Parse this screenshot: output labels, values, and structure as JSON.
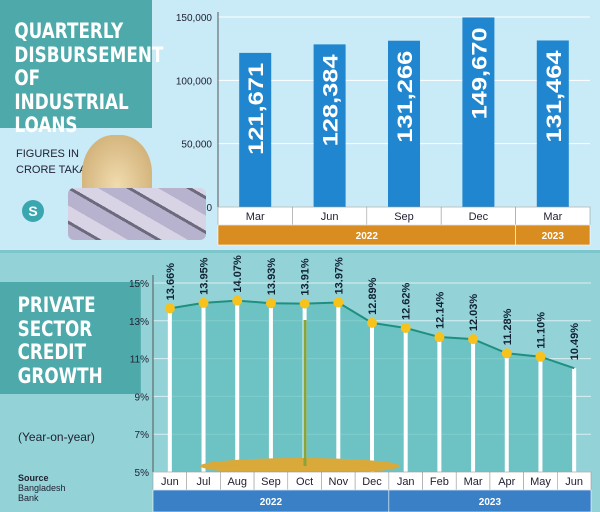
{
  "panel1": {
    "title": [
      "QUARTERLY",
      "DISBURSEMENT",
      "OF INDUSTRIAL",
      "LOANS"
    ],
    "note": [
      "FIGURES IN",
      "CRORE TAKA"
    ],
    "logo": "S"
  },
  "panel2": {
    "title": [
      "PRIVATE",
      "SECTOR",
      "CREDIT",
      "GROWTH"
    ],
    "note": "(Year-on-year)",
    "source": [
      "Source",
      "Bangladesh",
      "Bank"
    ]
  },
  "chart_data": [
    {
      "type": "bar",
      "title": "QUARTERLY DISBURSEMENT OF INDUSTRIAL LOANS",
      "ylabel": "FIGURES IN CRORE TAKA",
      "categories": [
        "Mar",
        "Jun",
        "Sep",
        "Dec",
        "Mar"
      ],
      "groups": [
        {
          "label": "2022",
          "span": 4
        },
        {
          "label": "2023",
          "span": 1
        }
      ],
      "values": [
        121671,
        128384,
        131266,
        149670,
        131464
      ],
      "value_labels": [
        "121,671",
        "128,384",
        "131,266",
        "149,670",
        "131,464"
      ],
      "ylim": [
        0,
        150000
      ],
      "yticks": [
        "0",
        "50,000",
        "100,000",
        "150,000"
      ],
      "grid": true,
      "colors": {
        "bar": "#1f86cf",
        "group_bar": "#d98c1f"
      }
    },
    {
      "type": "line",
      "title": "PRIVATE SECTOR CREDIT GROWTH",
      "subtitle": "(Year-on-year)",
      "categories": [
        "Jun",
        "Jul",
        "Aug",
        "Sep",
        "Oct",
        "Nov",
        "Dec",
        "Jan",
        "Feb",
        "Mar",
        "Apr",
        "May",
        "Jun"
      ],
      "groups": [
        {
          "label": "2022",
          "span": 7
        },
        {
          "label": "2023",
          "span": 6
        }
      ],
      "values": [
        13.66,
        13.95,
        14.07,
        13.93,
        13.91,
        13.97,
        12.89,
        12.62,
        12.14,
        12.03,
        11.28,
        11.1,
        10.49
      ],
      "value_labels": [
        "13.66%",
        "13.95%",
        "14.07%",
        "13.93%",
        "13.91%",
        "13.97%",
        "12.89%",
        "12.62%",
        "12.14%",
        "12.03%",
        "11.28%",
        "11.10%",
        "10.49%"
      ],
      "ylim": [
        5,
        15
      ],
      "yticks": [
        "5%",
        "7%",
        "9%",
        "11%",
        "13%",
        "15%"
      ],
      "grid": true,
      "colors": {
        "line": "#1f8f7f",
        "marker": "#f7c21b",
        "group_bar": "#3a80c6"
      }
    }
  ]
}
